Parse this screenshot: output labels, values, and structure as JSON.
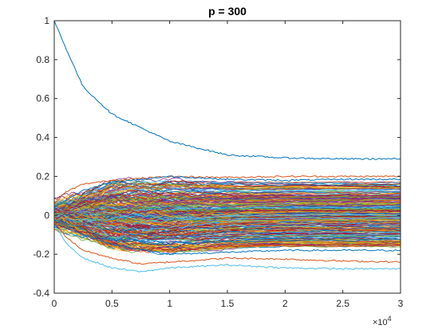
{
  "chart_data": {
    "type": "line",
    "title": "p = 300",
    "xlabel": "",
    "ylabel": "",
    "xlim": [
      0,
      30000
    ],
    "ylim": [
      -0.4,
      1
    ],
    "x_ticks": [
      0,
      5000,
      10000,
      15000,
      20000,
      25000,
      30000
    ],
    "x_tick_labels": [
      "0",
      "0.5",
      "1",
      "1.5",
      "2",
      "2.5",
      "3"
    ],
    "x_exponent_label": "×10",
    "x_exponent_power": "4",
    "y_ticks": [
      -0.4,
      -0.2,
      0,
      0.2,
      0.4,
      0.6,
      0.8,
      1
    ],
    "y_tick_labels": [
      "-0.4",
      "-0.2",
      "0",
      "0.2",
      "0.4",
      "0.6",
      "0.8",
      "1"
    ],
    "grid": false,
    "legend": "none",
    "series_count": 300,
    "colors": [
      "#0072BD",
      "#D95319",
      "#EDB120",
      "#7E2F8E",
      "#77AC30",
      "#4DBEEE",
      "#A2142F"
    ],
    "highlighted_series": [
      {
        "color": "#0072BD",
        "x": [
          0,
          1000,
          2500,
          5000,
          7500,
          10000,
          15000,
          20000,
          25000,
          30000
        ],
        "y": [
          1.0,
          0.86,
          0.66,
          0.52,
          0.45,
          0.38,
          0.31,
          0.295,
          0.29,
          0.29
        ]
      },
      {
        "color": "#4DBEEE",
        "x": [
          0,
          1000,
          2500,
          5000,
          7500,
          10000,
          15000,
          20000,
          25000,
          30000
        ],
        "y": [
          -0.05,
          -0.14,
          -0.22,
          -0.27,
          -0.29,
          -0.27,
          -0.255,
          -0.27,
          -0.275,
          -0.275
        ]
      },
      {
        "color": "#D95319",
        "x": [
          0,
          1000,
          2500,
          5000,
          7500,
          10000,
          15000,
          20000,
          25000,
          30000
        ],
        "y": [
          -0.03,
          -0.11,
          -0.18,
          -0.22,
          -0.25,
          -0.24,
          -0.22,
          -0.225,
          -0.235,
          -0.24
        ]
      },
      {
        "color": "#D95319",
        "x": [
          0,
          1000,
          2500,
          5000,
          7500,
          10000,
          15000,
          20000,
          25000,
          30000
        ],
        "y": [
          0.06,
          0.12,
          0.16,
          0.18,
          0.19,
          0.2,
          0.195,
          0.2,
          0.2,
          0.2
        ]
      },
      {
        "color": "#0072BD",
        "x": [
          0,
          2500,
          5000,
          10000,
          15000,
          20000,
          25000,
          30000
        ],
        "y": [
          0.04,
          0.13,
          0.17,
          0.2,
          0.185,
          0.18,
          0.185,
          0.185
        ]
      },
      {
        "color": "#0072BD",
        "x": [
          0,
          2500,
          5000,
          10000,
          15000,
          20000,
          25000,
          30000
        ],
        "y": [
          -0.02,
          -0.1,
          -0.15,
          -0.2,
          -0.19,
          -0.18,
          -0.18,
          -0.18
        ]
      }
    ],
    "bulk_series_envelope": {
      "x": [
        0,
        5000,
        10000,
        15000,
        20000,
        25000,
        30000
      ],
      "y_min": [
        -0.03,
        -0.17,
        -0.19,
        -0.17,
        -0.16,
        -0.16,
        -0.16
      ],
      "y_max": [
        0.04,
        0.17,
        0.18,
        0.17,
        0.17,
        0.17,
        0.17
      ]
    }
  }
}
